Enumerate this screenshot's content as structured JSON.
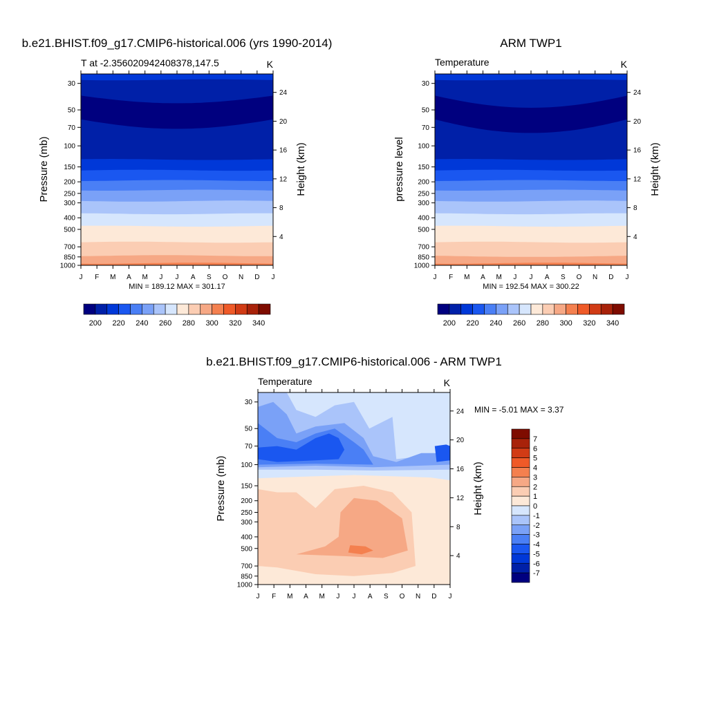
{
  "figure": {
    "panel_a_title": "b.e21.BHIST.f09_g17.CMIP6-historical.006 (yrs 1990-2014)",
    "panel_b_title": "ARM TWP1",
    "panel_c_title": "b.e21.BHIST.f09_g17.CMIP6-historical.006 - ARM TWP1"
  },
  "colors": {
    "temp_scale": [
      "#00007f",
      "#0020a8",
      "#0038d8",
      "#1a57f0",
      "#4a7ff5",
      "#7aa1f7",
      "#aac4fa",
      "#d6e6fd",
      "#fde9d8",
      "#fbcdb3",
      "#f6a885",
      "#f4804f",
      "#ef5a28",
      "#d13b15",
      "#a8220a",
      "#7e0c00"
    ],
    "diff_scale": [
      "#00007f",
      "#0020a8",
      "#0038d8",
      "#1a57f0",
      "#4a7ff5",
      "#7aa1f7",
      "#aac4fa",
      "#d6e6fd",
      "#fde9d8",
      "#fbcdb3",
      "#f6a885",
      "#f4804f",
      "#ef5a28",
      "#d13b15",
      "#a8220a",
      "#7e0c00"
    ]
  },
  "chart_data": [
    {
      "type": "heatmap",
      "id": "model",
      "title": "b.e21.BHIST.f09_g17.CMIP6-historical.006 (yrs 1990-2014)",
      "left_subtitle": "T at -2.356020942408378,147.5",
      "right_subtitle": "K",
      "x_categories": [
        "J",
        "F",
        "M",
        "A",
        "M",
        "J",
        "J",
        "A",
        "S",
        "O",
        "N",
        "D",
        "J"
      ],
      "ylabel": "Pressure (mb)",
      "y_ticks": [
        30,
        50,
        70,
        100,
        150,
        200,
        250,
        300,
        400,
        500,
        700,
        850,
        1000
      ],
      "ylim": [
        1000,
        25
      ],
      "y2label": "Height (km)",
      "y2_ticks": [
        24,
        20,
        16,
        12,
        8,
        4
      ],
      "stats": "MIN = 189.12 MAX = 301.17",
      "levels": [
        200,
        220,
        240,
        260,
        280,
        300,
        320,
        340
      ],
      "bands": [
        {
          "lo": 25,
          "hi": 30,
          "value": 215
        },
        {
          "lo": 30,
          "hi": 50,
          "value": 205
        },
        {
          "lo": 50,
          "hi": 70,
          "value": 195
        },
        {
          "lo": 70,
          "hi": 100,
          "value": 195
        },
        {
          "lo": 100,
          "hi": 130,
          "value": 195
        },
        {
          "lo": 130,
          "hi": 150,
          "value": 205
        },
        {
          "lo": 150,
          "hi": 200,
          "value": 215
        },
        {
          "lo": 200,
          "hi": 250,
          "value": 225
        },
        {
          "lo": 250,
          "hi": 300,
          "value": 235
        },
        {
          "lo": 300,
          "hi": 400,
          "value": 245
        },
        {
          "lo": 400,
          "hi": 500,
          "value": 255
        },
        {
          "lo": 500,
          "hi": 700,
          "value": 275
        },
        {
          "lo": 700,
          "hi": 850,
          "value": 285
        },
        {
          "lo": 850,
          "hi": 1000,
          "value": 295
        }
      ]
    },
    {
      "type": "heatmap",
      "id": "obs",
      "title": "ARM TWP1",
      "left_subtitle": "Temperature",
      "right_subtitle": "K",
      "x_categories": [
        "J",
        "F",
        "M",
        "A",
        "M",
        "J",
        "J",
        "A",
        "S",
        "O",
        "N",
        "D",
        "J"
      ],
      "ylabel": "pressure level",
      "y_ticks": [
        30,
        50,
        70,
        100,
        150,
        200,
        250,
        300,
        400,
        500,
        700,
        850,
        1000
      ],
      "ylim": [
        1000,
        25
      ],
      "y2label": "Height (km)",
      "y2_ticks": [
        24,
        20,
        16,
        12,
        8,
        4
      ],
      "stats": "MIN = 192.54 MAX = 300.22",
      "levels": [
        200,
        220,
        240,
        260,
        280,
        300,
        320,
        340
      ]
    },
    {
      "type": "heatmap",
      "id": "difference",
      "title": "b.e21.BHIST.f09_g17.CMIP6-historical.006 - ARM TWP1",
      "left_subtitle": "Temperature",
      "right_subtitle": "K",
      "x_categories": [
        "J",
        "F",
        "M",
        "A",
        "M",
        "J",
        "J",
        "A",
        "S",
        "O",
        "N",
        "D",
        "J"
      ],
      "ylabel": "Pressure (mb)",
      "y_ticks": [
        30,
        50,
        70,
        100,
        150,
        200,
        250,
        300,
        400,
        500,
        700,
        850,
        1000
      ],
      "ylim": [
        1000,
        25
      ],
      "y2label": "Height (km)",
      "y2_ticks": [
        24,
        20,
        16,
        12,
        8,
        4
      ],
      "stats_label": "MIN =  -5.01 MAX =   3.37",
      "levels": [
        -7,
        -6,
        -5,
        -4,
        -3,
        -2,
        -1,
        0,
        1,
        2,
        3,
        4,
        5,
        6,
        7
      ]
    }
  ]
}
